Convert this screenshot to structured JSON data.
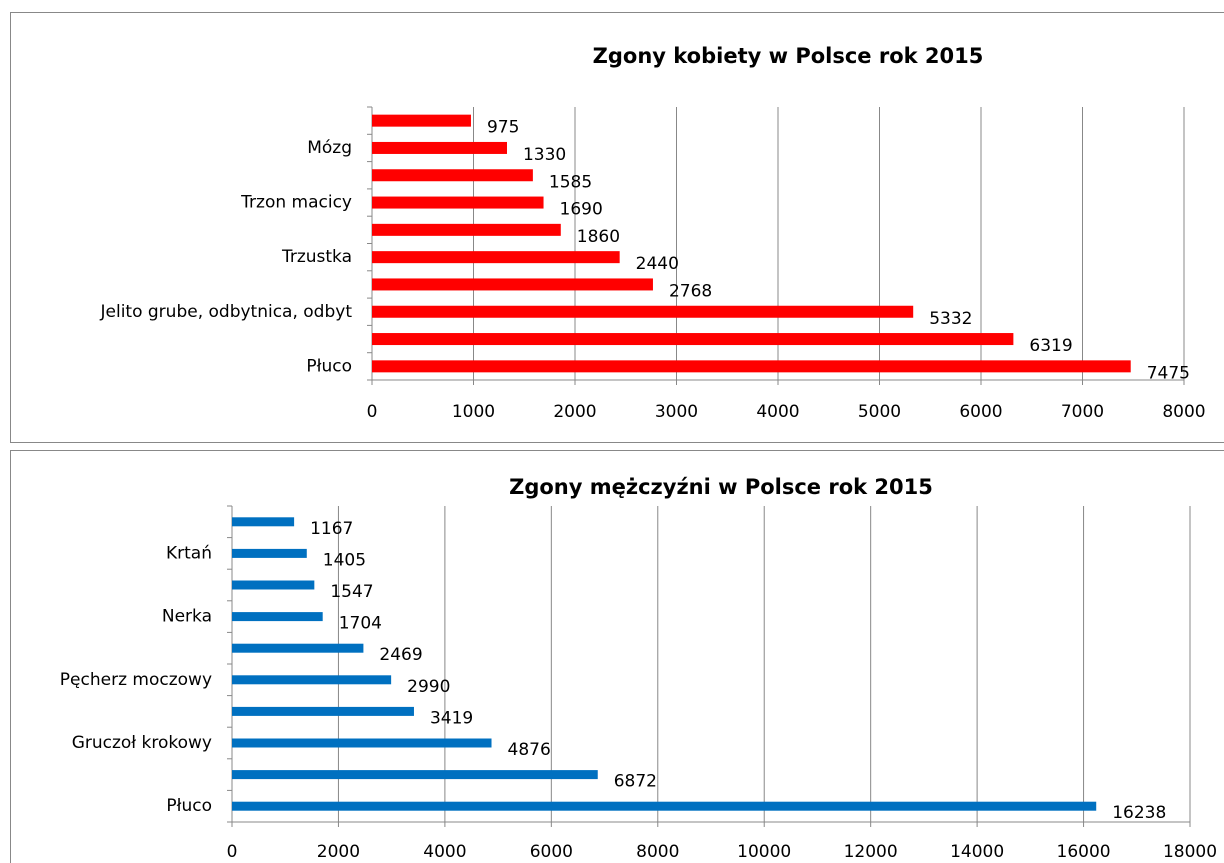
{
  "chart_data": [
    {
      "type": "bar",
      "orientation": "horizontal",
      "title": "Zgony kobiety w Polsce rok 2015",
      "categories": [
        "Płuco",
        null,
        "Jelito grube, odbytnica, odbyt",
        null,
        "Trzustka",
        null,
        "Trzon macicy",
        null,
        "Mózg",
        null
      ],
      "values": [
        7475,
        6319,
        5332,
        2768,
        2440,
        1860,
        1690,
        1585,
        1330,
        975
      ],
      "color": "#ff0000",
      "xlim": [
        0,
        8000
      ],
      "xticks": [
        0,
        1000,
        2000,
        3000,
        4000,
        5000,
        6000,
        7000,
        8000
      ],
      "grid": true
    },
    {
      "type": "bar",
      "orientation": "horizontal",
      "title": "Zgony mężczyźni w Polsce rok 2015",
      "categories": [
        "Płuco",
        null,
        "Gruczoł krokowy",
        null,
        "Pęcherz moczowy",
        null,
        "Nerka",
        null,
        "Krtań",
        null
      ],
      "values": [
        16238,
        6872,
        4876,
        3419,
        2990,
        2469,
        1704,
        1547,
        1405,
        1167
      ],
      "color": "#0070c0",
      "xlim": [
        0,
        18000
      ],
      "xticks": [
        0,
        2000,
        4000,
        6000,
        8000,
        10000,
        12000,
        14000,
        16000,
        18000
      ],
      "grid": true
    }
  ]
}
